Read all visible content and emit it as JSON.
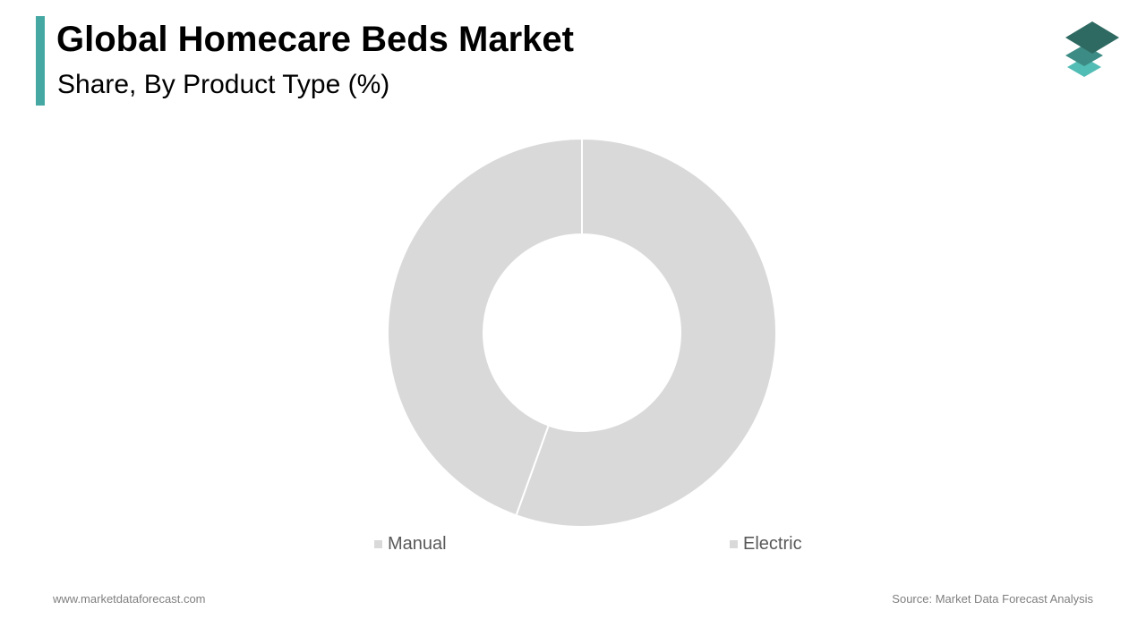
{
  "header": {
    "title": "Global Homecare Beds Market",
    "subtitle": "Share, By Product Type (%)",
    "accent_color": "#46a8a2"
  },
  "logo": {
    "icon": "stacked-layers-logo",
    "colors": [
      "#2f6a62",
      "#3c8c85",
      "#52bdb5"
    ]
  },
  "chart_data": {
    "type": "pie",
    "variant": "donut",
    "title": "",
    "categories": [
      "Electric",
      "Manual"
    ],
    "values": [
      55.5,
      44.5
    ],
    "unit": "%",
    "slice_color": "#d9d9d9",
    "separator_color": "#ffffff",
    "legend": {
      "placement": "bottom",
      "entries": [
        "Manual",
        "Electric"
      ]
    },
    "data_labels": false
  },
  "footer": {
    "website": "www.marketdataforecast.com",
    "source": "Source: Market Data Forecast Analysis"
  }
}
